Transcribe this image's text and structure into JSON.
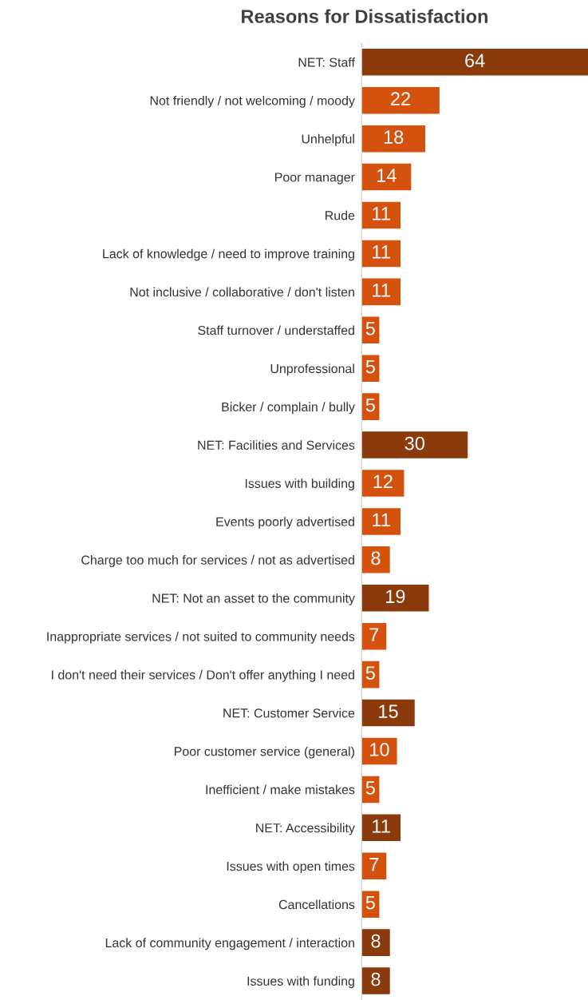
{
  "chart_data": {
    "type": "bar",
    "orientation": "horizontal",
    "title": "Reasons for Dissatisfaction",
    "categories": [
      "NET: Staff",
      "Not friendly / not welcoming / moody",
      "Unhelpful",
      "Poor manager",
      "Rude",
      "Lack of knowledge / need to improve training",
      "Not inclusive / collaborative / don't listen",
      "Staff turnover / understaffed",
      "Unprofessional",
      "Bicker / complain / bully",
      "NET: Facilities and Services",
      "Issues with building",
      "Events poorly advertised",
      "Charge too much for services / not as advertised",
      "NET: Not an asset to the community",
      "Inappropriate services / not suited to community needs",
      "I don't need their services / Don't offer anything I need",
      "NET: Customer Service",
      "Poor customer service (general)",
      "Inefficient / make mistakes",
      "NET: Accessibility",
      "Issues with open times",
      "Cancellations",
      "Lack of community engagement / interaction",
      "Issues with funding"
    ],
    "values": [
      64,
      22,
      18,
      14,
      11,
      11,
      11,
      5,
      5,
      5,
      30,
      12,
      11,
      8,
      19,
      7,
      5,
      15,
      10,
      5,
      11,
      7,
      5,
      8,
      8
    ],
    "colors": [
      "#8b3a0b",
      "#d4520e",
      "#d4520e",
      "#d4520e",
      "#d4520e",
      "#d4520e",
      "#d4520e",
      "#d4520e",
      "#d4520e",
      "#d4520e",
      "#8b3a0b",
      "#d4520e",
      "#d4520e",
      "#d4520e",
      "#8b3a0b",
      "#d4520e",
      "#d4520e",
      "#8b3a0b",
      "#d4520e",
      "#d4520e",
      "#8b3a0b",
      "#d4520e",
      "#d4520e",
      "#8b3a0b",
      "#8b3a0b"
    ],
    "data_labels": true,
    "tick_labels": "y",
    "grid": false,
    "legend": false
  }
}
